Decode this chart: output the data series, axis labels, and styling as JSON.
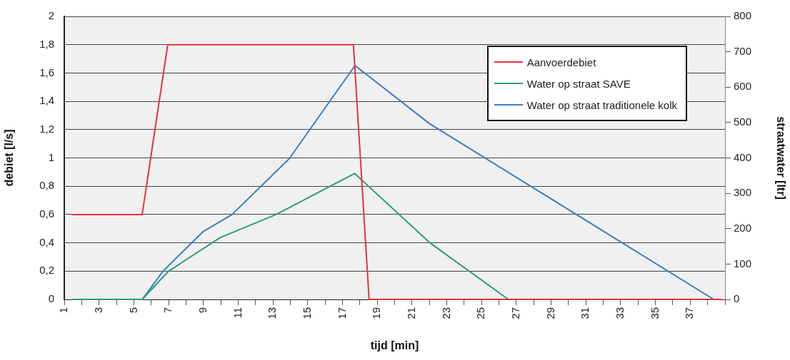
{
  "chart_data": {
    "type": "line",
    "xlabel": "tijd [min]",
    "ylabel": "debiet [l/s]",
    "y2label": "straatwater [ltr]",
    "xlim": [
      1,
      39
    ],
    "xticks": [
      1,
      {
        "value": 2,
        "label": null
      },
      3,
      {
        "value": 4,
        "label": null
      },
      5,
      {
        "value": 6,
        "label": null
      },
      7,
      {
        "value": 8,
        "label": null
      },
      9,
      {
        "value": 10,
        "label": null
      },
      11,
      {
        "value": 12,
        "label": null
      },
      13,
      {
        "value": 14,
        "label": null
      },
      15,
      {
        "value": 16,
        "label": null
      },
      17,
      {
        "value": 18,
        "label": null
      },
      19,
      {
        "value": 20,
        "label": null
      },
      21,
      {
        "value": 22,
        "label": null
      },
      23,
      {
        "value": 24,
        "label": null
      },
      25,
      {
        "value": 26,
        "label": null
      },
      27,
      {
        "value": 28,
        "label": null
      },
      29,
      {
        "value": 30,
        "label": null
      },
      31,
      {
        "value": 32,
        "label": null
      },
      33,
      {
        "value": 34,
        "label": null
      },
      35,
      {
        "value": 36,
        "label": null
      },
      37,
      {
        "value": 38,
        "label": null
      },
      {
        "value": 39,
        "label": null
      }
    ],
    "ylim": [
      0,
      2
    ],
    "yticks": [
      0,
      {
        "value": 0.2,
        "label": "0,2"
      },
      {
        "value": 0.4,
        "label": "0,4"
      },
      {
        "value": 0.6,
        "label": "0,6"
      },
      {
        "value": 0.8,
        "label": "0,8"
      },
      1,
      {
        "value": 1.2,
        "label": "1,2"
      },
      {
        "value": 1.4,
        "label": "1,4"
      },
      {
        "value": 1.6,
        "label": "1,6"
      },
      {
        "value": 1.8,
        "label": "1,8"
      },
      2
    ],
    "y2lim": [
      0,
      800
    ],
    "y2ticks": [
      0,
      100,
      200,
      300,
      400,
      500,
      600,
      700,
      800
    ],
    "grid": "y",
    "legend": "top right",
    "marker": "none",
    "line_style": "solid",
    "series": [
      {
        "name": "Aanvoerdebiet",
        "color": "#e8323c",
        "x": [
          1.4,
          5.48,
          6.95,
          17.63,
          18.53,
          38.8
        ],
        "values": [
          0.6,
          0.6,
          1.8,
          1.8,
          0,
          0
        ]
      },
      {
        "name": "Water op straat SAVE",
        "color": "#2a9d78",
        "axis": "y2",
        "x": [
          1.48,
          5.48,
          7.0,
          9.98,
          13.18,
          17.7,
          22.0,
          26.54,
          38.8
        ],
        "values": [
          0,
          0,
          80,
          175,
          240,
          356,
          161,
          0,
          0
        ]
      },
      {
        "name": "Water op straat traditionele kolk",
        "color": "#3a7ec0",
        "axis": "y2",
        "x": [
          1.48,
          5.48,
          6.68,
          8.97,
          10.65,
          13.94,
          17.72,
          22.0,
          38.35
        ],
        "values": [
          0,
          0,
          80,
          191,
          240,
          398,
          661,
          497,
          0
        ]
      }
    ]
  }
}
